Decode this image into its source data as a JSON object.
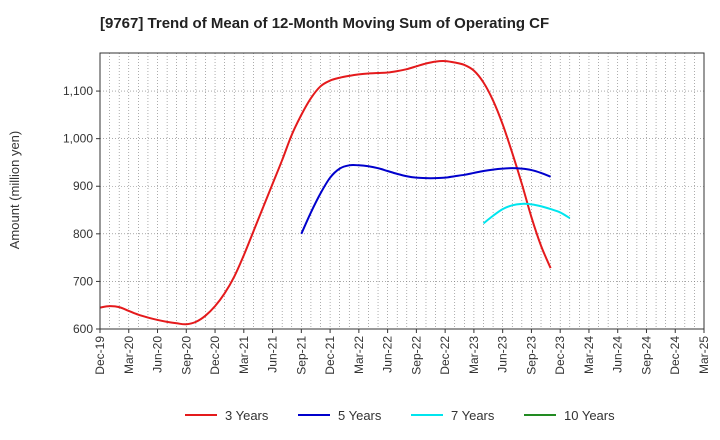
{
  "chart_data": {
    "type": "line",
    "title": "[9767]  Trend of Mean of 12-Month Moving Sum of Operating CF",
    "xlabel": "",
    "ylabel": "Amount (million yen)",
    "ylim": [
      600,
      1180
    ],
    "yticks": [
      600,
      700,
      800,
      900,
      1000,
      1100
    ],
    "ytick_labels": [
      "600",
      "700",
      "800",
      "900",
      "1,000",
      "1,100"
    ],
    "x_tick_labels": [
      "Dec-19",
      "Mar-20",
      "Jun-20",
      "Sep-20",
      "Dec-20",
      "Mar-21",
      "Jun-21",
      "Sep-21",
      "Dec-21",
      "Mar-22",
      "Jun-22",
      "Sep-22",
      "Dec-22",
      "Mar-23",
      "Jun-23",
      "Sep-23",
      "Dec-23",
      "Mar-24",
      "Jun-24",
      "Sep-24",
      "Dec-24",
      "Mar-25"
    ],
    "grid": true,
    "legend_position": "bottom",
    "series": [
      {
        "name": "3 Years",
        "color": "#e41a1c",
        "start_index": 0,
        "values": [
          645,
          648,
          646,
          638,
          630,
          624,
          619,
          615,
          612,
          610,
          615,
          628,
          648,
          675,
          710,
          755,
          805,
          855,
          905,
          955,
          1008,
          1050,
          1085,
          1110,
          1122,
          1128,
          1132,
          1135,
          1137,
          1138,
          1139,
          1142,
          1146,
          1152,
          1158,
          1162,
          1163,
          1160,
          1155,
          1143,
          1118,
          1080,
          1030,
          970,
          905,
          835,
          775,
          728
        ]
      },
      {
        "name": "5 Years",
        "color": "#0000cc",
        "start_index": 21,
        "values": [
          800,
          845,
          885,
          918,
          937,
          944,
          944,
          942,
          938,
          932,
          926,
          921,
          918,
          917,
          917,
          918,
          921,
          924,
          928,
          932,
          935,
          937,
          938,
          937,
          934,
          928,
          920
        ]
      },
      {
        "name": "7 Years",
        "color": "#00e5ee",
        "start_index": 40,
        "values": [
          822,
          838,
          852,
          860,
          863,
          862,
          858,
          852,
          845,
          833
        ]
      },
      {
        "name": "10 Years",
        "color": "#228b22",
        "start_index": 0,
        "values": []
      }
    ]
  }
}
